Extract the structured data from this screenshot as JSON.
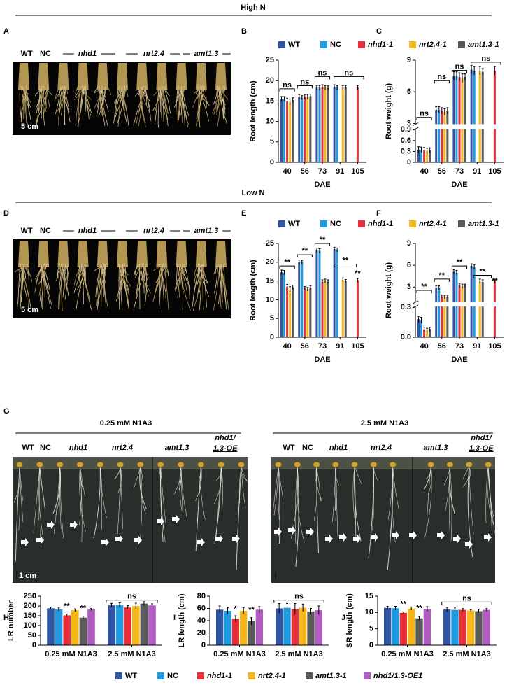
{
  "headers": {
    "high_n": "High N",
    "low_n": "Low N",
    "low_conc": "0.25 mM N1A3",
    "high_conc": "2.5 mM N1A3"
  },
  "panels": [
    "A",
    "B",
    "C",
    "D",
    "E",
    "F",
    "G",
    "H",
    "I",
    "J"
  ],
  "photos": {
    "a": {
      "labels": [
        "WT",
        "NC",
        "nhd1",
        "nrt2.4",
        "amt1.3"
      ],
      "scale": "5 cm"
    },
    "d": {
      "labels": [
        "WT",
        "NC",
        "nhd1",
        "nrt2.4",
        "amt1.3"
      ],
      "scale": "5 cm"
    },
    "g_left": {
      "labels": [
        "WT",
        "NC",
        "nhd1",
        "nrt2.4",
        "amt1.3",
        "nhd1/",
        "1.3-OE"
      ],
      "scale": "1 cm"
    },
    "g_right": {
      "labels": [
        "WT",
        "NC",
        "nhd1",
        "nrt2.4",
        "amt1.3",
        "nhd1/",
        "1.3-OE"
      ]
    }
  },
  "chart_data": [
    {
      "type": "bar",
      "ylabel": "Root length (cm)",
      "xlabel": "DAE",
      "categories": [
        40,
        56,
        73,
        91,
        105
      ],
      "series": [
        {
          "name": "WT",
          "color": "#2f55a4",
          "values": [
            15.5,
            16,
            18.3,
            18.5,
            null
          ],
          "errors": [
            0.6,
            0.6,
            0.5,
            0.5,
            null
          ]
        },
        {
          "name": "NC",
          "color": "#1e9be0",
          "values": [
            15.5,
            15.8,
            18.2,
            18.3,
            null
          ],
          "errors": [
            0.6,
            0.5,
            0.6,
            0.5,
            null
          ]
        },
        {
          "name": "nhd1-1",
          "color": "#e8303a",
          "values": [
            15,
            16,
            18.5,
            null,
            18.3
          ],
          "errors": [
            0.7,
            0.6,
            0.5,
            null,
            0.5
          ]
        },
        {
          "name": "nrt2.4-1",
          "color": "#f5b61a",
          "values": [
            14.8,
            16,
            18.3,
            18.3,
            null
          ],
          "errors": [
            0.7,
            0.6,
            0.5,
            0.5,
            null
          ]
        },
        {
          "name": "amt1.3-1",
          "color": "#5a5a5a",
          "values": [
            15.2,
            16.2,
            18.2,
            18.4,
            null
          ],
          "errors": [
            0.6,
            0.5,
            0.5,
            0.4,
            null
          ]
        }
      ],
      "ylim": [
        0,
        25
      ],
      "yticks": [
        0,
        5,
        10,
        15,
        20,
        25
      ],
      "annotations": [
        "ns",
        "ns",
        "ns",
        "ns"
      ]
    },
    {
      "type": "bar",
      "ylabel": "Root weight (g)",
      "xlabel": "DAE",
      "categories": [
        40,
        56,
        73,
        91,
        105
      ],
      "series": [
        {
          "name": "WT",
          "color": "#2f55a4",
          "values": [
            0.35,
            4.3,
            7.5,
            8.1,
            null
          ],
          "errors": [
            0.08,
            0.3,
            0.4,
            0.4,
            null
          ]
        },
        {
          "name": "NC",
          "color": "#1e9be0",
          "values": [
            0.35,
            4.3,
            7.5,
            8,
            null
          ],
          "errors": [
            0.07,
            0.3,
            0.4,
            0.4,
            null
          ]
        },
        {
          "name": "nhd1-1",
          "color": "#e8303a",
          "values": [
            0.33,
            4.2,
            7.4,
            null,
            8
          ],
          "errors": [
            0.08,
            0.3,
            0.4,
            null,
            0.4
          ]
        },
        {
          "name": "nrt2.4-1",
          "color": "#f5b61a",
          "values": [
            0.32,
            4.1,
            7.3,
            8,
            null
          ],
          "errors": [
            0.07,
            0.3,
            0.4,
            0.4,
            null
          ]
        },
        {
          "name": "amt1.3-1",
          "color": "#5a5a5a",
          "values": [
            0.33,
            4.2,
            7.4,
            7.9,
            null
          ],
          "errors": [
            0.07,
            0.3,
            0.3,
            0.3,
            null
          ]
        }
      ],
      "ylim": [
        0,
        9
      ],
      "ybreak": [
        0.9,
        3
      ],
      "yticks": [
        0,
        0.3,
        0.6,
        0.9,
        3,
        6,
        9
      ],
      "annotations": [
        "ns",
        "ns",
        "ns",
        "ns"
      ]
    },
    {
      "type": "bar",
      "ylabel": "Root length (cm)",
      "xlabel": "DAE",
      "categories": [
        40,
        56,
        73,
        91,
        105
      ],
      "series": [
        {
          "name": "WT",
          "color": "#2f55a4",
          "values": [
            17.3,
            20,
            23.2,
            23.5,
            null
          ],
          "errors": [
            0.6,
            0.6,
            0.6,
            0.5,
            null
          ]
        },
        {
          "name": "NC",
          "color": "#1e9be0",
          "values": [
            17.2,
            20,
            23,
            23.3,
            null
          ],
          "errors": [
            0.6,
            0.5,
            0.6,
            0.5,
            null
          ]
        },
        {
          "name": "nhd1-1",
          "color": "#e8303a",
          "values": [
            13.5,
            13,
            14.8,
            null,
            15.2
          ],
          "errors": [
            0.6,
            0.5,
            0.5,
            null,
            0.5
          ]
        },
        {
          "name": "nrt2.4-1",
          "color": "#f5b61a",
          "values": [
            12.8,
            12.8,
            15,
            15.3,
            null
          ],
          "errors": [
            0.7,
            0.5,
            0.5,
            0.5,
            null
          ]
        },
        {
          "name": "amt1.3-1",
          "color": "#5a5a5a",
          "values": [
            13.3,
            13.2,
            14.8,
            15,
            null
          ],
          "errors": [
            0.6,
            0.5,
            0.5,
            0.4,
            null
          ]
        }
      ],
      "ylim": [
        0,
        25
      ],
      "yticks": [
        0,
        5,
        10,
        15,
        20,
        25
      ],
      "annotations": [
        "**",
        "**",
        "**",
        "**",
        "**"
      ]
    },
    {
      "type": "bar",
      "ylabel": "Root weight (g)",
      "xlabel": "DAE",
      "categories": [
        40,
        56,
        73,
        91,
        105
      ],
      "series": [
        {
          "name": "WT",
          "color": "#2f55a4",
          "values": [
            0.18,
            2.9,
            5.1,
            5.9,
            null
          ],
          "errors": [
            0.03,
            0.3,
            0.3,
            0.3,
            null
          ]
        },
        {
          "name": "NC",
          "color": "#1e9be0",
          "values": [
            0.17,
            2.9,
            5,
            5.8,
            null
          ],
          "errors": [
            0.03,
            0.3,
            0.3,
            0.3,
            null
          ]
        },
        {
          "name": "nhd1-1",
          "color": "#e8303a",
          "values": [
            0.08,
            1.7,
            3.2,
            null,
            3.8
          ],
          "errors": [
            0.02,
            0.2,
            0.3,
            null,
            0.3
          ]
        },
        {
          "name": "nrt2.4-1",
          "color": "#f5b61a",
          "values": [
            0.07,
            1.6,
            3.1,
            3.8,
            null
          ],
          "errors": [
            0.02,
            0.2,
            0.3,
            0.3,
            null
          ]
        },
        {
          "name": "amt1.3-1",
          "color": "#5a5a5a",
          "values": [
            0.08,
            1.7,
            3.2,
            3.7,
            null
          ],
          "errors": [
            0.02,
            0.2,
            0.2,
            0.3,
            null
          ]
        }
      ],
      "ylim": [
        0,
        9
      ],
      "ybreak": [
        0.3,
        1
      ],
      "yticks": [
        {
          "value": 0,
          "label": "0.0"
        },
        0.3,
        3,
        6,
        9
      ],
      "annotations": [
        "**",
        "**",
        "**",
        "**",
        "**"
      ]
    },
    {
      "type": "bar",
      "ylabel": "LR number",
      "categories": [
        "0.25 mM N1A3",
        "2.5 mM N1A3"
      ],
      "series": [
        {
          "name": "WT",
          "color": "#2f55a4",
          "values": [
            188,
            203
          ],
          "errors": [
            6,
            10
          ]
        },
        {
          "name": "NC",
          "color": "#1e9be0",
          "values": [
            182,
            204
          ],
          "errors": [
            8,
            12
          ]
        },
        {
          "name": "nhd1-1",
          "color": "#e8303a",
          "values": [
            152,
            192
          ],
          "errors": [
            7,
            10
          ]
        },
        {
          "name": "nrt2.4-1",
          "color": "#f5b61a",
          "values": [
            178,
            200
          ],
          "errors": [
            7,
            14
          ]
        },
        {
          "name": "amt1.3-1",
          "color": "#5a5a5a",
          "values": [
            140,
            212
          ],
          "errors": [
            8,
            10
          ]
        },
        {
          "name": "nhd1/1.3-OE1",
          "color": "#b05cc0",
          "values": [
            182,
            203
          ],
          "errors": [
            5,
            8
          ]
        }
      ],
      "ylim": [
        0,
        250
      ],
      "yticks": [
        0,
        50,
        100,
        150,
        200,
        250
      ],
      "annotations": [
        "**",
        "**",
        "ns"
      ]
    },
    {
      "type": "bar",
      "ylabel": "LR length (cm)",
      "categories": [
        "0.25 mM N1A3",
        "2.5 mM N1A3"
      ],
      "series": [
        {
          "name": "WT",
          "color": "#2f55a4",
          "values": [
            58,
            60
          ],
          "errors": [
            6,
            8
          ]
        },
        {
          "name": "NC",
          "color": "#1e9be0",
          "values": [
            56,
            61
          ],
          "errors": [
            5,
            7
          ]
        },
        {
          "name": "nhd1-1",
          "color": "#e8303a",
          "values": [
            43,
            59
          ],
          "errors": [
            5,
            9
          ]
        },
        {
          "name": "nrt2.4-1",
          "color": "#f5b61a",
          "values": [
            56,
            61
          ],
          "errors": [
            5,
            6
          ]
        },
        {
          "name": "amt1.3-1",
          "color": "#5a5a5a",
          "values": [
            39,
            55
          ],
          "errors": [
            6,
            5
          ]
        },
        {
          "name": "nhd1/1.3-OE1",
          "color": "#b05cc0",
          "values": [
            58,
            57
          ],
          "errors": [
            5,
            7
          ]
        }
      ],
      "ylim": [
        0,
        80
      ],
      "yticks": [
        0,
        20,
        40,
        60,
        80
      ],
      "annotations": [
        "*",
        "**",
        "ns"
      ]
    },
    {
      "type": "bar",
      "ylabel": "SR length (cm)",
      "categories": [
        "0.25 mM N1A3",
        "2.5 mM N1A3"
      ],
      "series": [
        {
          "name": "WT",
          "color": "#2f55a4",
          "values": [
            11.4,
            10.9
          ],
          "errors": [
            0.5,
            0.7
          ]
        },
        {
          "name": "NC",
          "color": "#1e9be0",
          "values": [
            11.3,
            10.8
          ],
          "errors": [
            0.6,
            0.6
          ]
        },
        {
          "name": "nhd1-1",
          "color": "#e8303a",
          "values": [
            9.9,
            10.8
          ],
          "errors": [
            0.3,
            0.4
          ]
        },
        {
          "name": "nrt2.4-1",
          "color": "#f5b61a",
          "values": [
            11.2,
            10.6
          ],
          "errors": [
            0.5,
            0.3
          ]
        },
        {
          "name": "amt1.3-1",
          "color": "#5a5a5a",
          "values": [
            8.2,
            10.4
          ],
          "errors": [
            0.6,
            0.6
          ]
        },
        {
          "name": "nhd1/1.3-OE1",
          "color": "#b05cc0",
          "values": [
            11.1,
            10.8
          ],
          "errors": [
            0.7,
            0.4
          ]
        }
      ],
      "ylim": [
        0,
        15
      ],
      "yticks": [
        0,
        5,
        10,
        15
      ],
      "annotations": [
        "**",
        "**",
        "ns"
      ]
    }
  ]
}
